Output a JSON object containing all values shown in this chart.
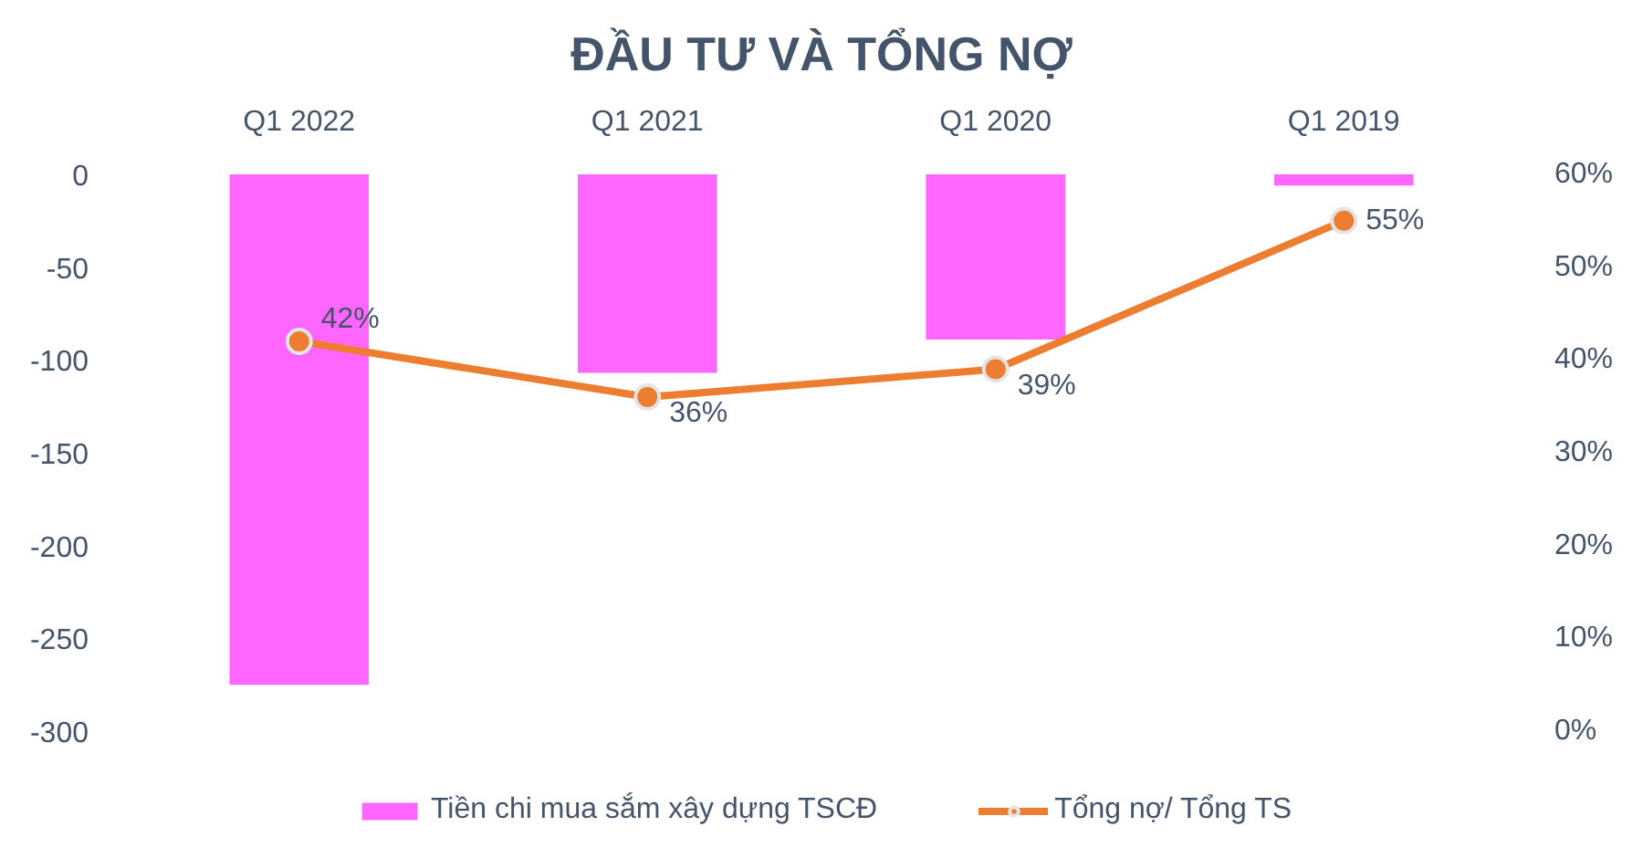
{
  "chart_data": {
    "type": "bar",
    "title": "ĐẦU TƯ VÀ TỔNG NỢ",
    "categories": [
      "Q1 2022",
      "Q1 2021",
      "Q1 2020",
      "Q1 2019"
    ],
    "series": [
      {
        "name": "Tiền chi mua sắm xây dựng TSCĐ",
        "color": "#ff66ff",
        "values": [
          -275,
          -107,
          -89,
          -6
        ]
      },
      {
        "name": "Tổng nợ/ Tổng TS",
        "type": "line",
        "axis": "y2",
        "color": "#ed7d31",
        "values": [
          42,
          36,
          39,
          55
        ],
        "value_labels": [
          "42%",
          "36%",
          "39%",
          "55%"
        ],
        "marker": "circle",
        "line_style": "solid"
      }
    ],
    "ylim": [
      -300,
      0
    ],
    "yticks": [
      0,
      -50,
      -100,
      -150,
      -200,
      -250,
      -300
    ],
    "y2lim": [
      0,
      60
    ],
    "y2ticks": [
      {
        "value": 0,
        "label": "0%"
      },
      {
        "value": 10,
        "label": "10%"
      },
      {
        "value": 20,
        "label": "20%"
      },
      {
        "value": 30,
        "label": "30%"
      },
      {
        "value": 40,
        "label": "40%"
      },
      {
        "value": 50,
        "label": "50%"
      },
      {
        "value": 60,
        "label": "60%"
      }
    ],
    "legend": "bottom"
  }
}
